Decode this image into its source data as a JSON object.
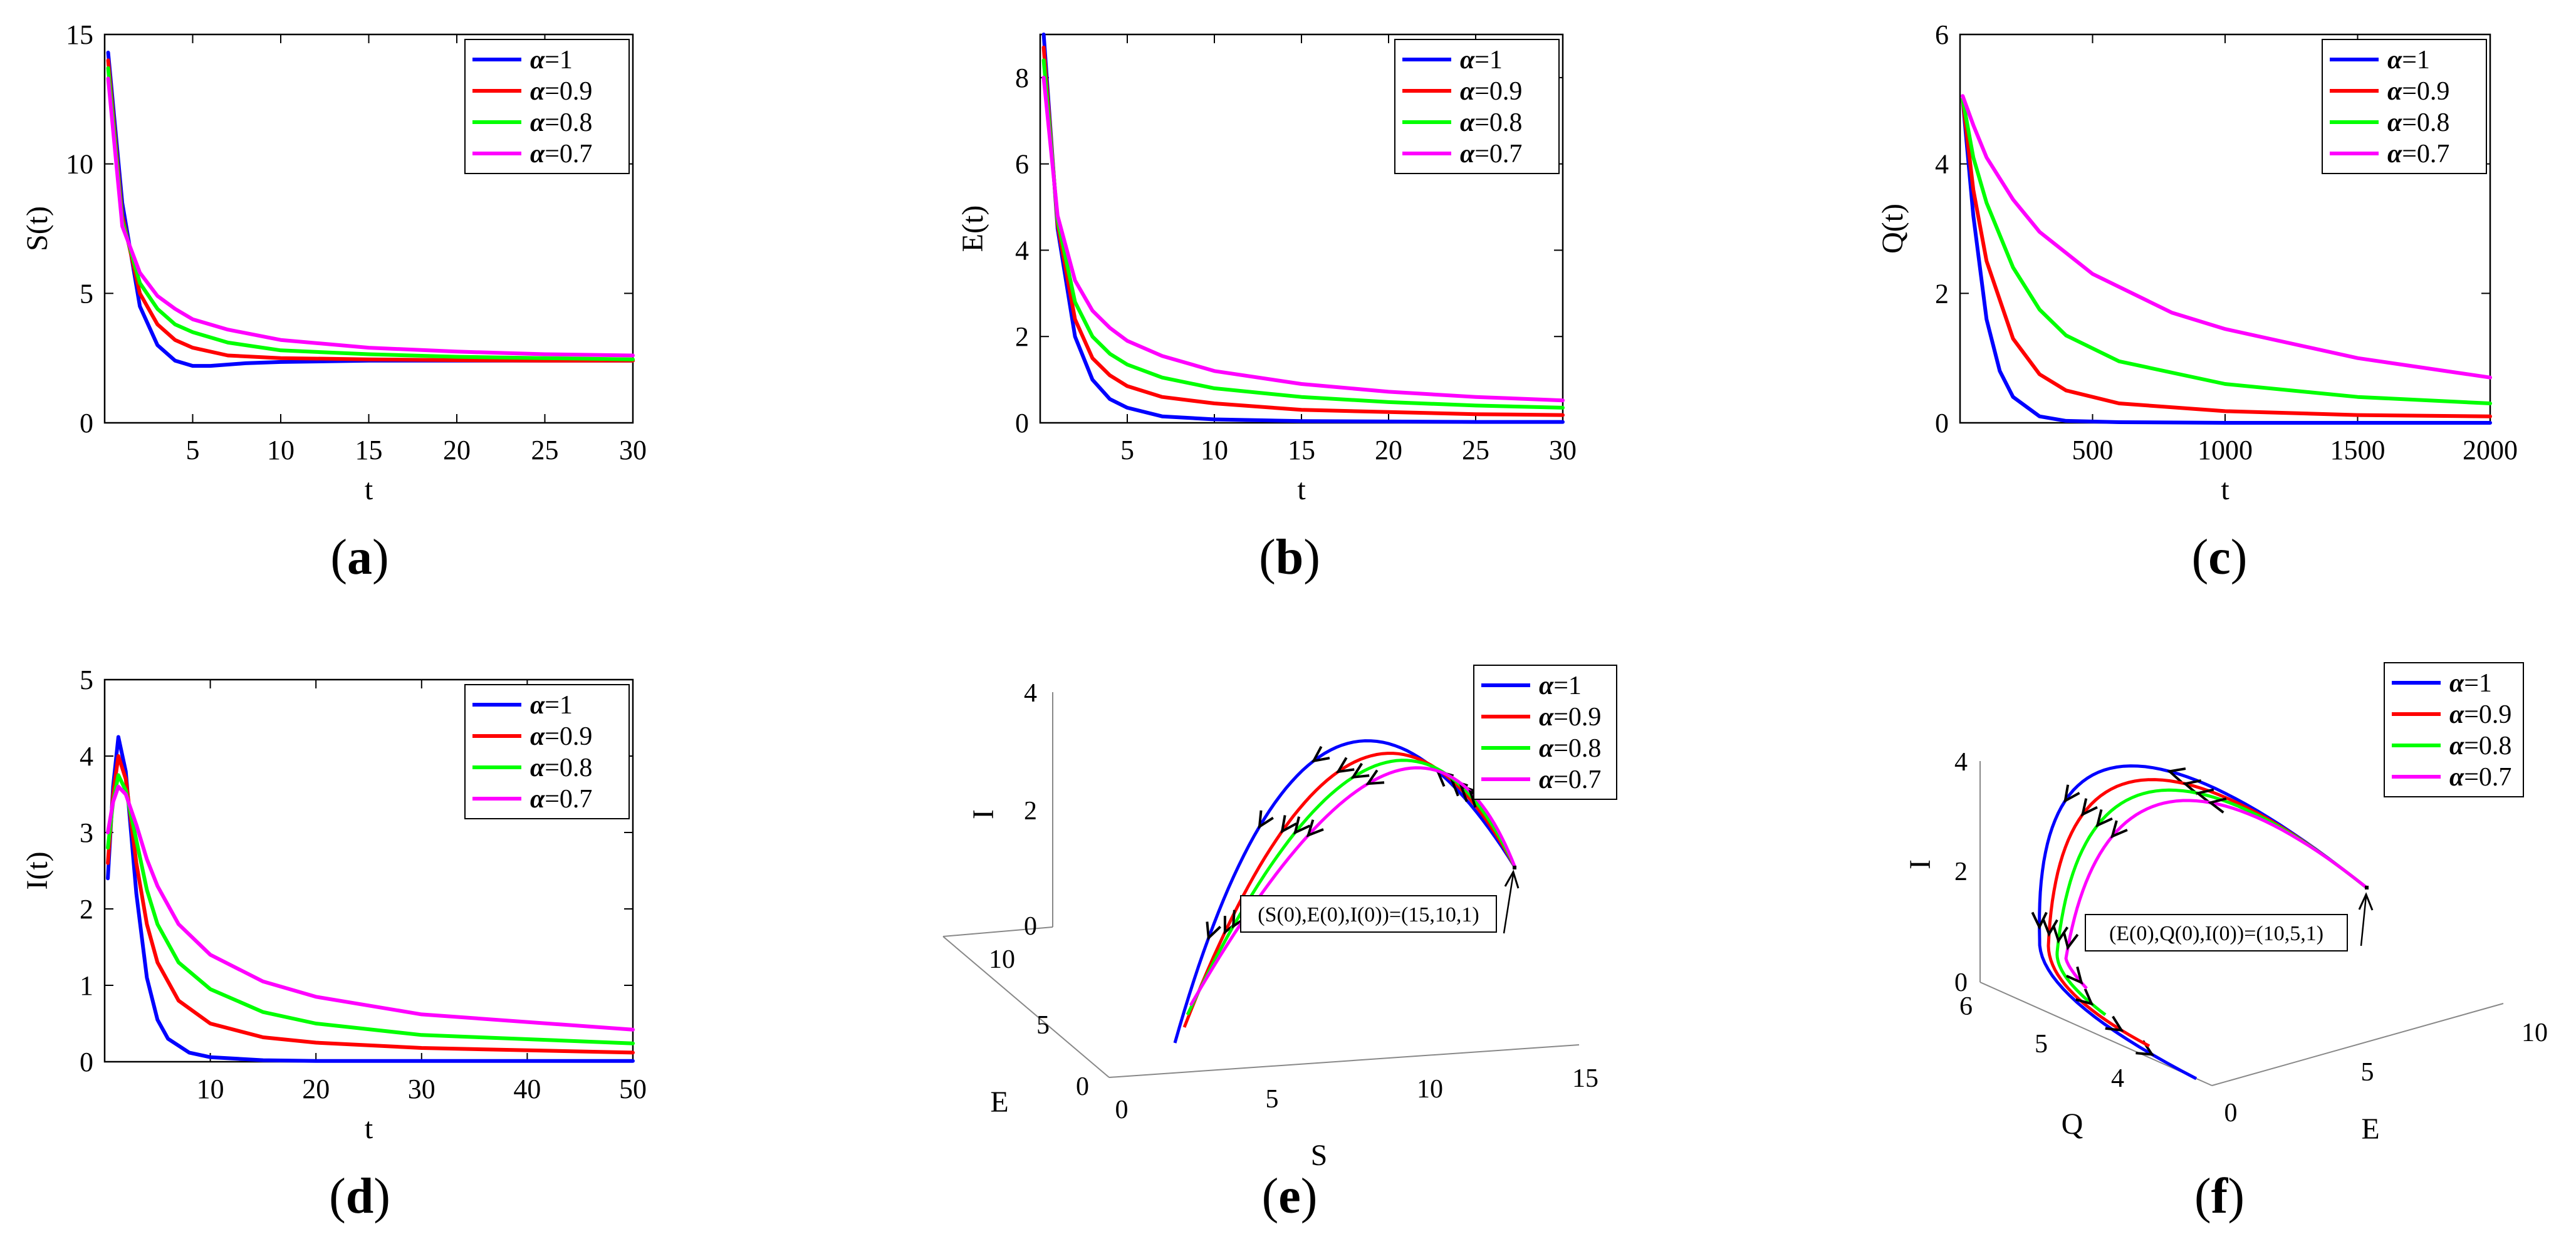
{
  "colors": {
    "alpha_1": "#0000ff",
    "alpha_0_9": "#ff0000",
    "alpha_0_8": "#00ff00",
    "alpha_0_7": "#ff00ff"
  },
  "chart_data": [
    {
      "id": "a",
      "type": "line",
      "caption": "a",
      "ylabel": "S(t)",
      "xlabel": "t",
      "xlim": [
        0,
        30
      ],
      "ylim": [
        0,
        15
      ],
      "xticks": [
        5,
        10,
        15,
        20,
        25,
        30
      ],
      "yticks": [
        0,
        5,
        10,
        15
      ],
      "legend": "top-right",
      "series": [
        {
          "name": "α=1",
          "color": "#0000ff",
          "x": [
            0.2,
            1,
            2,
            3,
            4,
            5,
            6,
            8,
            10,
            15,
            20,
            25,
            30
          ],
          "y": [
            14.3,
            8.5,
            4.5,
            3.0,
            2.4,
            2.2,
            2.2,
            2.3,
            2.35,
            2.4,
            2.4,
            2.4,
            2.4
          ]
        },
        {
          "name": "α=0.9",
          "color": "#ff0000",
          "x": [
            0.2,
            1,
            2,
            3,
            4,
            5,
            7,
            10,
            15,
            20,
            25,
            30
          ],
          "y": [
            14.0,
            8.0,
            5.0,
            3.8,
            3.2,
            2.9,
            2.6,
            2.5,
            2.45,
            2.42,
            2.4,
            2.4
          ]
        },
        {
          "name": "α=0.8",
          "color": "#00ff00",
          "x": [
            0.2,
            1,
            2,
            3,
            4,
            5,
            7,
            10,
            15,
            20,
            25,
            30
          ],
          "y": [
            13.7,
            7.8,
            5.4,
            4.4,
            3.8,
            3.5,
            3.1,
            2.8,
            2.65,
            2.55,
            2.5,
            2.45
          ]
        },
        {
          "name": "α=0.7",
          "color": "#ff00ff",
          "x": [
            0.2,
            1,
            2,
            3,
            4,
            5,
            7,
            10,
            15,
            20,
            25,
            30
          ],
          "y": [
            13.3,
            7.6,
            5.8,
            4.9,
            4.4,
            4.0,
            3.6,
            3.2,
            2.9,
            2.75,
            2.65,
            2.6
          ]
        }
      ]
    },
    {
      "id": "b",
      "type": "line",
      "caption": "b",
      "ylabel": "E(t)",
      "xlabel": "t",
      "xlim": [
        0,
        30
      ],
      "ylim": [
        0,
        9
      ],
      "xticks": [
        5,
        10,
        15,
        20,
        25,
        30
      ],
      "yticks": [
        0,
        2,
        4,
        6,
        8
      ],
      "legend": "top-right",
      "series": [
        {
          "name": "α=1",
          "color": "#0000ff",
          "x": [
            0.2,
            1,
            2,
            3,
            4,
            5,
            7,
            10,
            15,
            20,
            25,
            30
          ],
          "y": [
            9.0,
            4.5,
            2.0,
            1.0,
            0.55,
            0.35,
            0.15,
            0.08,
            0.04,
            0.03,
            0.02,
            0.02
          ]
        },
        {
          "name": "α=0.9",
          "color": "#ff0000",
          "x": [
            0.2,
            1,
            2,
            3,
            4,
            5,
            7,
            10,
            15,
            20,
            25,
            30
          ],
          "y": [
            8.7,
            4.6,
            2.4,
            1.5,
            1.1,
            0.85,
            0.6,
            0.45,
            0.3,
            0.25,
            0.2,
            0.18
          ]
        },
        {
          "name": "α=0.8",
          "color": "#00ff00",
          "x": [
            0.2,
            1,
            2,
            3,
            4,
            5,
            7,
            10,
            15,
            20,
            25,
            30
          ],
          "y": [
            8.4,
            4.7,
            2.8,
            2.0,
            1.6,
            1.35,
            1.05,
            0.8,
            0.6,
            0.48,
            0.4,
            0.35
          ]
        },
        {
          "name": "α=0.7",
          "color": "#ff00ff",
          "x": [
            0.2,
            1,
            2,
            3,
            4,
            5,
            7,
            10,
            15,
            20,
            25,
            30
          ],
          "y": [
            8.0,
            4.8,
            3.3,
            2.6,
            2.2,
            1.9,
            1.55,
            1.2,
            0.9,
            0.72,
            0.6,
            0.52
          ]
        }
      ]
    },
    {
      "id": "c",
      "type": "line",
      "caption": "c",
      "ylabel": "Q(t)",
      "xlabel": "t",
      "xlim": [
        0,
        2000
      ],
      "ylim": [
        0,
        6
      ],
      "xticks": [
        500,
        1000,
        1500,
        2000
      ],
      "yticks": [
        0,
        2,
        4,
        6
      ],
      "legend": "top-right",
      "series": [
        {
          "name": "α=1",
          "color": "#0000ff",
          "x": [
            10,
            50,
            100,
            150,
            200,
            300,
            400,
            600,
            1000,
            2000
          ],
          "y": [
            5.0,
            3.2,
            1.6,
            0.8,
            0.4,
            0.1,
            0.03,
            0.01,
            0.0,
            0.0
          ]
        },
        {
          "name": "α=0.9",
          "color": "#ff0000",
          "x": [
            10,
            50,
            100,
            200,
            300,
            400,
            600,
            1000,
            1500,
            2000
          ],
          "y": [
            5.0,
            3.6,
            2.5,
            1.3,
            0.75,
            0.5,
            0.3,
            0.18,
            0.12,
            0.1
          ]
        },
        {
          "name": "α=0.8",
          "color": "#00ff00",
          "x": [
            10,
            50,
            100,
            200,
            300,
            400,
            600,
            1000,
            1500,
            2000
          ],
          "y": [
            5.0,
            4.1,
            3.4,
            2.4,
            1.75,
            1.35,
            0.95,
            0.6,
            0.4,
            0.3
          ]
        },
        {
          "name": "α=0.7",
          "color": "#ff00ff",
          "x": [
            10,
            50,
            100,
            200,
            300,
            500,
            800,
            1000,
            1500,
            2000
          ],
          "y": [
            5.05,
            4.6,
            4.1,
            3.45,
            2.95,
            2.3,
            1.7,
            1.45,
            1.0,
            0.7
          ]
        }
      ]
    },
    {
      "id": "d",
      "type": "line",
      "caption": "d",
      "ylabel": "I(t)",
      "xlabel": "t",
      "xlim": [
        0,
        50
      ],
      "ylim": [
        0,
        5
      ],
      "xticks": [
        10,
        20,
        30,
        40,
        50
      ],
      "yticks": [
        0,
        1,
        2,
        3,
        4,
        5
      ],
      "legend": "top-right",
      "series": [
        {
          "name": "α=1",
          "color": "#0000ff",
          "x": [
            0.3,
            0.8,
            1.3,
            2,
            3,
            4,
            5,
            6,
            8,
            10,
            15,
            20,
            30,
            50
          ],
          "y": [
            2.4,
            3.6,
            4.25,
            3.8,
            2.2,
            1.1,
            0.55,
            0.3,
            0.12,
            0.06,
            0.02,
            0.01,
            0.01,
            0.01
          ]
        },
        {
          "name": "α=0.9",
          "color": "#ff0000",
          "x": [
            0.3,
            0.8,
            1.3,
            2,
            3,
            4,
            5,
            7,
            10,
            15,
            20,
            30,
            50
          ],
          "y": [
            2.6,
            3.5,
            4.0,
            3.7,
            2.6,
            1.8,
            1.3,
            0.8,
            0.5,
            0.32,
            0.25,
            0.18,
            0.12
          ]
        },
        {
          "name": "α=0.8",
          "color": "#00ff00",
          "x": [
            0.3,
            0.8,
            1.3,
            2,
            3,
            4,
            5,
            7,
            10,
            15,
            20,
            30,
            50
          ],
          "y": [
            2.8,
            3.4,
            3.75,
            3.55,
            2.9,
            2.25,
            1.8,
            1.3,
            0.95,
            0.65,
            0.5,
            0.35,
            0.24
          ]
        },
        {
          "name": "α=0.7",
          "color": "#ff00ff",
          "x": [
            0.3,
            0.8,
            1.3,
            2,
            3,
            4,
            5,
            7,
            10,
            15,
            20,
            30,
            50
          ],
          "y": [
            3.0,
            3.4,
            3.6,
            3.5,
            3.1,
            2.65,
            2.3,
            1.8,
            1.4,
            1.05,
            0.85,
            0.62,
            0.42
          ]
        }
      ]
    },
    {
      "id": "e",
      "type": "line3d",
      "caption": "e",
      "xlabel": "S",
      "ylabel": "E",
      "zlabel": "I",
      "xlim": [
        0,
        15
      ],
      "ylim": [
        0,
        10
      ],
      "zlim": [
        0,
        4
      ],
      "xticks": [
        0,
        5,
        10,
        15
      ],
      "yticks": [
        0,
        5,
        10
      ],
      "zticks": [
        0,
        2,
        4
      ],
      "legend": "top-right",
      "annotation": "(S(0),E(0),I(0))=(15,10,1)",
      "series": [
        {
          "name": "α=1",
          "color": "#0000ff"
        },
        {
          "name": "α=0.9",
          "color": "#ff0000"
        },
        {
          "name": "α=0.8",
          "color": "#00ff00"
        },
        {
          "name": "α=0.7",
          "color": "#ff00ff"
        }
      ]
    },
    {
      "id": "f",
      "type": "line3d",
      "caption": "f",
      "xlabel": "E",
      "ylabel": "Q",
      "zlabel": "I",
      "xlim": [
        0,
        10
      ],
      "ylim": [
        4,
        6
      ],
      "zlim": [
        0,
        4
      ],
      "xticks": [
        0,
        5,
        10
      ],
      "yticks": [
        4,
        5,
        6
      ],
      "zticks": [
        0,
        2,
        4
      ],
      "legend": "top-right",
      "annotation": "(E(0),Q(0),I(0))=(10,5,1)",
      "series": [
        {
          "name": "α=1",
          "color": "#0000ff"
        },
        {
          "name": "α=0.9",
          "color": "#ff0000"
        },
        {
          "name": "α=0.8",
          "color": "#00ff00"
        },
        {
          "name": "α=0.7",
          "color": "#ff00ff"
        }
      ]
    }
  ]
}
